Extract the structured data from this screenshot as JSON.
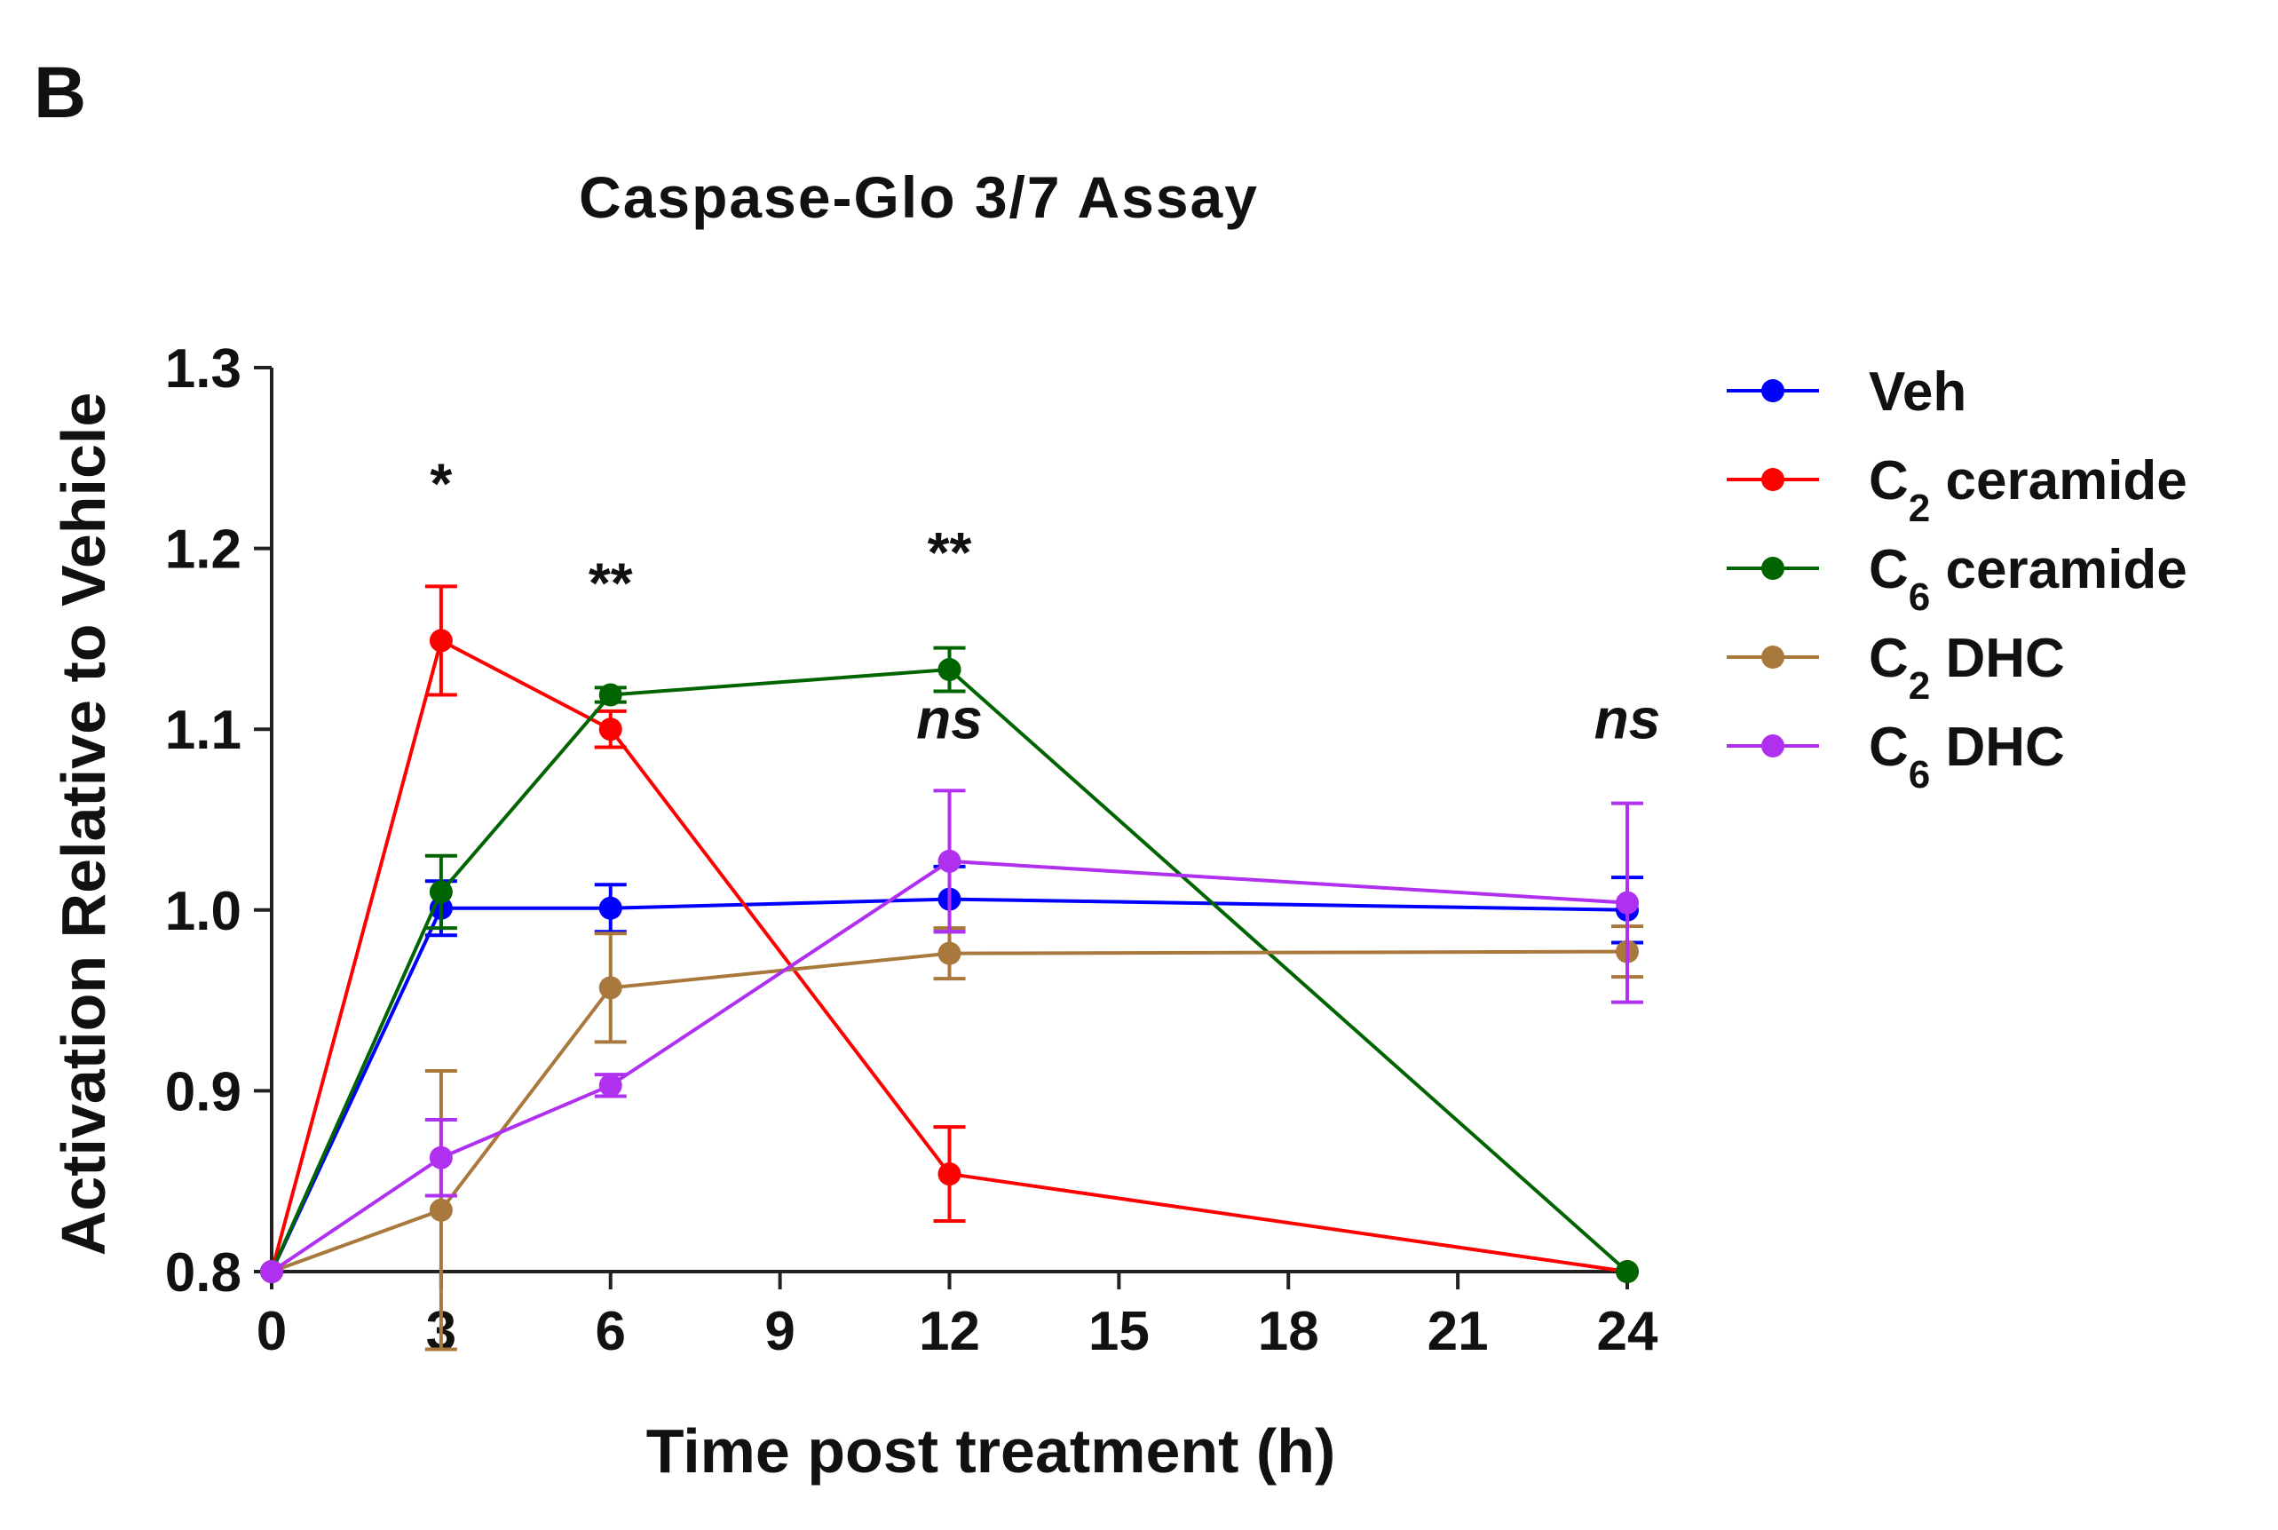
{
  "panel_label": "B",
  "chart_data": {
    "type": "line",
    "title": "Caspase-Glo 3/7 Assay",
    "xlabel": "Time post treatment (h)",
    "ylabel": "Activation  Relative to Vehicle",
    "xlim": [
      0,
      24
    ],
    "ylim": [
      0.8,
      1.3
    ],
    "x_ticks": [
      "0",
      "3",
      "6",
      "9",
      "12",
      "15",
      "18",
      "21",
      "24"
    ],
    "y_ticks": [
      "0.8",
      "0.9",
      "1.0",
      "1.1",
      "1.2",
      "1.3"
    ],
    "x": [
      0,
      3,
      6,
      12,
      24
    ],
    "grid": false,
    "legend_position": "right",
    "series": [
      {
        "name": "Veh",
        "label_main": "Veh",
        "label_sub": "",
        "label_tail": "",
        "color": "#0000ff",
        "values": [
          0.8,
          1.001,
          1.001,
          1.006,
          1.0
        ],
        "errors": [
          0,
          0.015,
          0.013,
          0.018,
          0.018
        ]
      },
      {
        "name": "C2 ceramide",
        "label_main": "C",
        "label_sub": "2",
        "label_tail": " ceramide",
        "color": "#ff0000",
        "values": [
          0.8,
          1.149,
          1.1,
          0.854,
          0.8
        ],
        "errors": [
          0,
          0.03,
          0.01,
          0.026,
          0
        ]
      },
      {
        "name": "C6 ceramide",
        "label_main": "C",
        "label_sub": "6",
        "label_tail": " ceramide",
        "color": "#006400",
        "values": [
          0.8,
          1.01,
          1.119,
          1.133,
          0.8
        ],
        "errors": [
          0,
          0.02,
          0.004,
          0.012,
          0
        ]
      },
      {
        "name": "C2 DHC",
        "label_main": "C",
        "label_sub": "2",
        "label_tail": " DHC",
        "color": "#a8783c",
        "values": [
          0.8,
          0.834,
          0.957,
          0.976,
          0.977
        ],
        "errors": [
          0,
          0.077,
          0.03,
          0.014,
          0.014
        ]
      },
      {
        "name": "C6 DHC",
        "label_main": "C",
        "label_sub": "6",
        "label_tail": " DHC",
        "color": "#b030f0",
        "values": [
          0.8,
          0.863,
          0.903,
          1.027,
          1.004
        ],
        "errors": [
          0,
          0.021,
          0.006,
          0.039,
          0.055
        ]
      }
    ],
    "annotations": [
      {
        "text": "*",
        "x": 3,
        "y": 1.225,
        "style": "star"
      },
      {
        "text": "**",
        "x": 6,
        "y": 1.17,
        "style": "star"
      },
      {
        "text": "**",
        "x": 12,
        "y": 1.187,
        "style": "star"
      },
      {
        "text": "ns",
        "x": 12,
        "y": 1.095,
        "style": "ns"
      },
      {
        "text": "ns",
        "x": 24,
        "y": 1.095,
        "style": "ns"
      }
    ]
  }
}
